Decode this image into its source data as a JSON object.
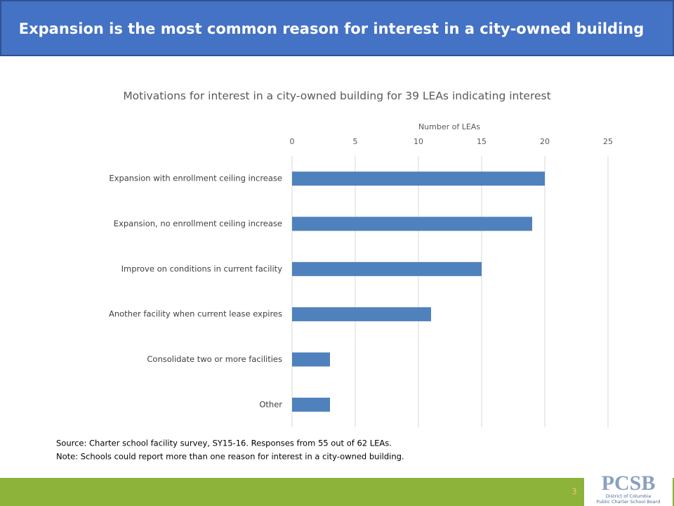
{
  "header": {
    "title": "Expansion is the most common reason for interest in a city-owned building"
  },
  "chart_data": {
    "type": "hbar",
    "title": "Motivations for interest in a city-owned building for 39 LEAs indicating interest",
    "x_label": "Number of LEAs",
    "categories": [
      "Expansion with enrollment ceiling increase",
      "Expansion, no enrollment ceiling increase",
      "Improve on conditions in current facility",
      "Another facility when current lease expires",
      "Consolidate two or more facilities",
      "Other"
    ],
    "values": [
      20,
      19,
      15,
      11,
      3,
      3
    ],
    "color": "#4f81bd",
    "xlim": [
      0,
      25
    ],
    "xticks": [
      0,
      5,
      10,
      15,
      20,
      25
    ],
    "grid": true
  },
  "notes": [
    "Source: Charter school facility survey, SY15-16. Responses from 55 out of 62 LEAs.",
    "Note: Schools could report more than one reason for interest in a city-owned building."
  ],
  "page_number": 3,
  "logo": {
    "mark": "PCSB",
    "line1": "District of Columbia",
    "line2": "Public Charter School Board"
  }
}
